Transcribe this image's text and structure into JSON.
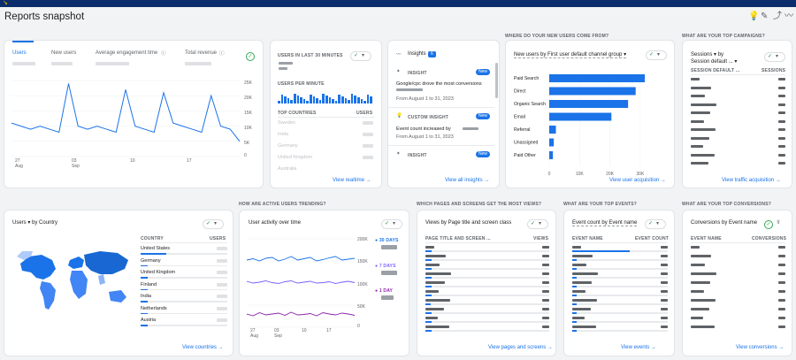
{
  "header": {
    "title": "Reports snapshot"
  },
  "overview": {
    "tabs": [
      {
        "label": "Users"
      },
      {
        "label": "New users"
      },
      {
        "label": "Average engagement time"
      },
      {
        "label": "Total revenue"
      }
    ],
    "yaxis": [
      "25K",
      "20K",
      "15K",
      "10K",
      "5K",
      "0"
    ],
    "xaxis": [
      "27",
      "03",
      "10",
      "17"
    ],
    "xmonths": [
      "Aug",
      "Sep"
    ],
    "line_values": [
      11,
      10,
      9,
      10,
      9,
      8,
      24,
      10,
      9,
      10,
      9,
      8,
      22,
      10,
      9,
      8,
      21,
      11,
      10,
      9,
      8,
      20,
      10,
      9,
      5
    ]
  },
  "realtime": {
    "title": "USERS IN LAST 30 MINUTES",
    "per_minute": "USERS PER MINUTE",
    "col1": "TOP COUNTRIES",
    "col2": "USERS",
    "countries": [
      "Sweden",
      "India",
      "Germany",
      "United Kingdom",
      "Australia"
    ],
    "link": "View realtime"
  },
  "insights": {
    "title": "Insights",
    "count": "6",
    "items": [
      {
        "tag": "INSIGHT",
        "badge": "New",
        "text": "Google/cpc drove the most conversions",
        "date": "From August 1 to 31, 2023"
      },
      {
        "tag": "CUSTOM INSIGHT",
        "badge": "New",
        "text": "Event count increased by",
        "date": "From August 1 to 31, 2023"
      },
      {
        "tag": "INSIGHT",
        "badge": "New",
        "text": "",
        "date": ""
      }
    ],
    "link": "View all insights"
  },
  "acquisition": {
    "section": "WHERE DO YOUR NEW USERS COME FROM?",
    "title": "New users by First user default channel group",
    "categories": [
      "Paid Search",
      "Direct",
      "Organic Search",
      "Email",
      "Referral",
      "Unassigned",
      "Paid Other"
    ],
    "values": [
      31500,
      28500,
      26000,
      20500,
      2200,
      1500,
      1200
    ],
    "xaxis": [
      "0",
      "10K",
      "20K",
      "30K"
    ],
    "link": "View user acquisition"
  },
  "campaigns": {
    "section": "WHAT ARE YOUR TOP CAMPAIGNS?",
    "title": "Sessions",
    "by": "by",
    "sub": "Session default ...",
    "col1": "SESSION DEFAULT ...",
    "col2": "SESSIONS",
    "link": "View traffic acquisition"
  },
  "country": {
    "title": "Users",
    "by": "by Country",
    "col1": "COUNTRY",
    "col2": "USERS",
    "rows": [
      "United States",
      "Germany",
      "United Kingdom",
      "Finland",
      "India",
      "Netherlands",
      "Austria"
    ],
    "link": "View countries"
  },
  "activity": {
    "section": "HOW ARE ACTIVE USERS TRENDING?",
    "title": "User activity over time",
    "yaxis": [
      "200K",
      "150K",
      "100K",
      "50K",
      "0"
    ],
    "xaxis": [
      "27",
      "03",
      "10",
      "17"
    ],
    "xmonths": [
      "Aug",
      "Sep"
    ],
    "legend": [
      "30 DAYS",
      "7 DAYS",
      "1 DAY"
    ],
    "colors": [
      "#1a73e8",
      "#7b61ff",
      "#8e24aa"
    ],
    "s30": [
      152,
      155,
      150,
      156,
      158,
      150,
      154,
      160,
      152,
      155,
      158,
      150,
      153,
      157,
      160,
      152,
      154,
      156
    ],
    "s7": [
      104,
      100,
      102,
      105,
      101,
      99,
      103,
      105,
      100,
      102,
      104,
      100,
      101,
      103,
      99,
      102,
      104,
      101
    ],
    "s1": [
      30,
      26,
      33,
      28,
      30,
      32,
      27,
      34,
      28,
      29,
      31,
      26,
      33,
      30,
      28,
      32,
      30,
      27
    ]
  },
  "pages": {
    "section": "WHICH PAGES AND SCREENS GET THE MOST VIEWS?",
    "title": "Views by Page title and screen class",
    "col1": "PAGE TITLE AND SCREEN ...",
    "col2": "VIEWS",
    "link": "View pages and screens"
  },
  "events": {
    "section": "WHAT ARE YOUR TOP EVENTS?",
    "title": "Event count by Event name",
    "col1": "EVENT NAME",
    "col2": "EVENT COUNT",
    "link": "View events"
  },
  "conversions": {
    "section": "WHAT ARE YOUR TOP CONVERSIONS?",
    "title": "Conversions by Event name",
    "col1": "EVENT NAME",
    "col2": "CONVERSIONS",
    "link": "View conversions"
  }
}
